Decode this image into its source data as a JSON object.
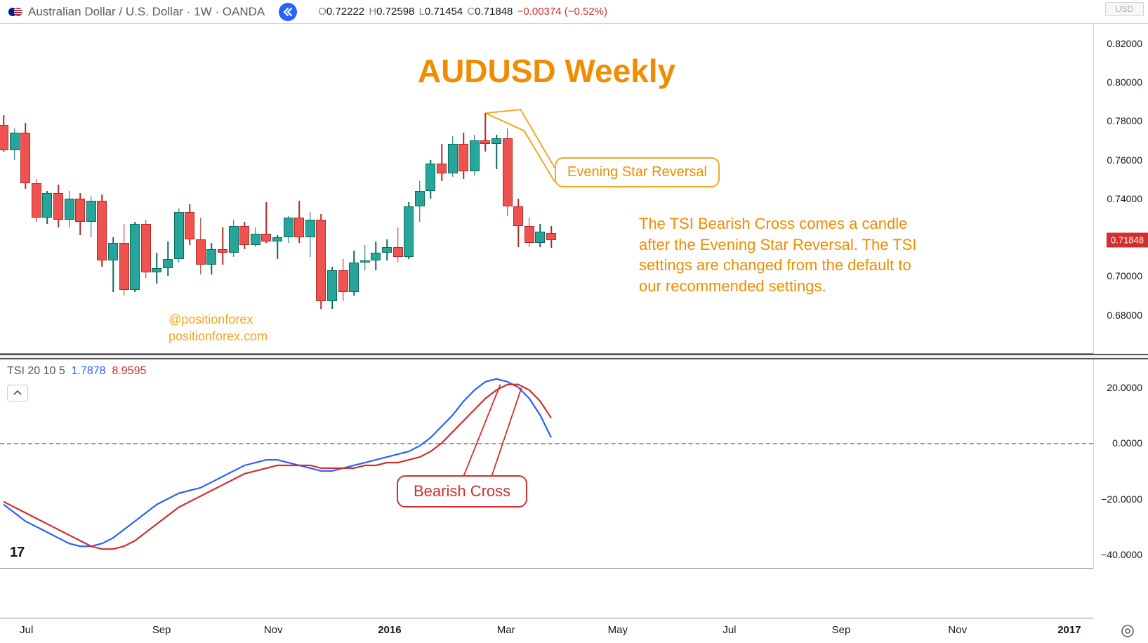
{
  "header": {
    "symbol": "Australian Dollar / U.S. Dollar · 1W · OANDA",
    "ohlc": {
      "O": "0.72222",
      "H": "0.72598",
      "L": "0.71454",
      "C": "0.71848",
      "chg": "−0.00374",
      "pct": "(−0.52%)"
    },
    "currency_selector": "USD"
  },
  "title": "AUDUSD Weekly",
  "watermark": {
    "line1": "@positionforex",
    "line2": "positionforex.com"
  },
  "callouts": {
    "evening_star": "Evening Star Reversal",
    "bearish_cross": "Bearish Cross"
  },
  "note": "The TSI Bearish Cross comes a candle after the Evening Star Reversal.  The TSI settings are changed from the default to our recommended settings.",
  "price_axis": {
    "min": 0.66,
    "max": 0.83,
    "ticks": [
      0.82,
      0.8,
      0.78,
      0.76,
      0.74,
      0.71848,
      0.7,
      0.68
    ],
    "price_tag": 0.71848
  },
  "indicator": {
    "label": "TSI 20 10 5",
    "v1": "1.7878",
    "v2": "8.9595",
    "min": -45,
    "max": 30,
    "ticks": [
      20.0,
      0.0,
      -20.0,
      -40.0
    ],
    "zero": 0,
    "blue_color": "#2962ff",
    "red_color": "#d12f2f",
    "blue": [
      -22,
      -25,
      -28,
      -30,
      -32,
      -34,
      -36,
      -37,
      -37,
      -36,
      -34,
      -31,
      -28,
      -25,
      -22,
      -20,
      -18,
      -17,
      -16,
      -14,
      -12,
      -10,
      -8,
      -7,
      -6,
      -6,
      -7,
      -8,
      -9,
      -10,
      -10,
      -9,
      -8,
      -7,
      -6,
      -5,
      -4,
      -3,
      -1,
      2,
      6,
      10,
      15,
      19,
      22,
      23,
      22,
      20,
      16,
      10,
      2
    ],
    "red": [
      -21,
      -23,
      -25,
      -27,
      -29,
      -31,
      -33,
      -35,
      -37,
      -38,
      -38,
      -37,
      -35,
      -32,
      -29,
      -26,
      -23,
      -21,
      -19,
      -17,
      -15,
      -13,
      -11,
      -10,
      -9,
      -8,
      -8,
      -8,
      -8,
      -9,
      -9,
      -9,
      -9,
      -8,
      -8,
      -7,
      -7,
      -6,
      -5,
      -3,
      0,
      4,
      8,
      12,
      16,
      19,
      21,
      21,
      19,
      15,
      9
    ]
  },
  "time_axis": {
    "start": "2015-06-01",
    "end": "2017-02-01",
    "ticks": [
      {
        "label": "Jul",
        "pos": 0.03,
        "bold": false
      },
      {
        "label": "Sep",
        "pos": 0.175,
        "bold": false
      },
      {
        "label": "Nov",
        "pos": 0.295,
        "bold": false
      },
      {
        "label": "2016",
        "pos": 0.42,
        "bold": true
      },
      {
        "label": "Mar",
        "pos": 0.545,
        "bold": false
      },
      {
        "label": "May",
        "pos": 0.665,
        "bold": false
      },
      {
        "label": "Jul",
        "pos": 0.785,
        "bold": false
      },
      {
        "label": "Sep",
        "pos": 0.905,
        "bold": false
      },
      {
        "label": "Nov",
        "pos": 1.03,
        "bold": false
      },
      {
        "label": "2017",
        "pos": 1.15,
        "bold": true
      }
    ]
  },
  "colors": {
    "orange": "#f08c00",
    "orange_light": "#f5a623",
    "red": "#d12f2f",
    "blue": "#2962ff",
    "candle_up": "#26a69a",
    "candle_down": "#ef5350",
    "text": "#131722"
  },
  "candles": [
    {
      "o": 0.778,
      "h": 0.783,
      "l": 0.764,
      "c": 0.765,
      "d": "down"
    },
    {
      "o": 0.765,
      "h": 0.776,
      "l": 0.76,
      "c": 0.774,
      "d": "up"
    },
    {
      "o": 0.774,
      "h": 0.779,
      "l": 0.745,
      "c": 0.748,
      "d": "down"
    },
    {
      "o": 0.748,
      "h": 0.75,
      "l": 0.728,
      "c": 0.73,
      "d": "down"
    },
    {
      "o": 0.73,
      "h": 0.744,
      "l": 0.727,
      "c": 0.743,
      "d": "up"
    },
    {
      "o": 0.743,
      "h": 0.747,
      "l": 0.725,
      "c": 0.729,
      "d": "down"
    },
    {
      "o": 0.729,
      "h": 0.744,
      "l": 0.725,
      "c": 0.74,
      "d": "up"
    },
    {
      "o": 0.74,
      "h": 0.743,
      "l": 0.721,
      "c": 0.728,
      "d": "down"
    },
    {
      "o": 0.728,
      "h": 0.741,
      "l": 0.72,
      "c": 0.739,
      "d": "up"
    },
    {
      "o": 0.739,
      "h": 0.742,
      "l": 0.705,
      "c": 0.708,
      "d": "down"
    },
    {
      "o": 0.708,
      "h": 0.72,
      "l": 0.692,
      "c": 0.717,
      "d": "up"
    },
    {
      "o": 0.717,
      "h": 0.727,
      "l": 0.69,
      "c": 0.693,
      "d": "down"
    },
    {
      "o": 0.693,
      "h": 0.728,
      "l": 0.692,
      "c": 0.727,
      "d": "up"
    },
    {
      "o": 0.727,
      "h": 0.729,
      "l": 0.699,
      "c": 0.702,
      "d": "down"
    },
    {
      "o": 0.702,
      "h": 0.712,
      "l": 0.696,
      "c": 0.704,
      "d": "up"
    },
    {
      "o": 0.704,
      "h": 0.718,
      "l": 0.7,
      "c": 0.709,
      "d": "up"
    },
    {
      "o": 0.709,
      "h": 0.735,
      "l": 0.707,
      "c": 0.733,
      "d": "up"
    },
    {
      "o": 0.733,
      "h": 0.737,
      "l": 0.716,
      "c": 0.719,
      "d": "down"
    },
    {
      "o": 0.719,
      "h": 0.73,
      "l": 0.701,
      "c": 0.706,
      "d": "down"
    },
    {
      "o": 0.706,
      "h": 0.717,
      "l": 0.701,
      "c": 0.714,
      "d": "up"
    },
    {
      "o": 0.714,
      "h": 0.725,
      "l": 0.706,
      "c": 0.712,
      "d": "down"
    },
    {
      "o": 0.712,
      "h": 0.729,
      "l": 0.71,
      "c": 0.726,
      "d": "up"
    },
    {
      "o": 0.726,
      "h": 0.728,
      "l": 0.714,
      "c": 0.716,
      "d": "down"
    },
    {
      "o": 0.716,
      "h": 0.725,
      "l": 0.715,
      "c": 0.722,
      "d": "up"
    },
    {
      "o": 0.722,
      "h": 0.738,
      "l": 0.717,
      "c": 0.718,
      "d": "down"
    },
    {
      "o": 0.718,
      "h": 0.721,
      "l": 0.709,
      "c": 0.72,
      "d": "up"
    },
    {
      "o": 0.72,
      "h": 0.731,
      "l": 0.717,
      "c": 0.73,
      "d": "up"
    },
    {
      "o": 0.73,
      "h": 0.739,
      "l": 0.717,
      "c": 0.72,
      "d": "down"
    },
    {
      "o": 0.72,
      "h": 0.733,
      "l": 0.71,
      "c": 0.729,
      "d": "up"
    },
    {
      "o": 0.729,
      "h": 0.732,
      "l": 0.683,
      "c": 0.687,
      "d": "down"
    },
    {
      "o": 0.687,
      "h": 0.705,
      "l": 0.683,
      "c": 0.703,
      "d": "up"
    },
    {
      "o": 0.703,
      "h": 0.709,
      "l": 0.687,
      "c": 0.692,
      "d": "down"
    },
    {
      "o": 0.692,
      "h": 0.713,
      "l": 0.69,
      "c": 0.707,
      "d": "up"
    },
    {
      "o": 0.707,
      "h": 0.716,
      "l": 0.703,
      "c": 0.708,
      "d": "up"
    },
    {
      "o": 0.708,
      "h": 0.718,
      "l": 0.703,
      "c": 0.712,
      "d": "up"
    },
    {
      "o": 0.712,
      "h": 0.719,
      "l": 0.708,
      "c": 0.715,
      "d": "up"
    },
    {
      "o": 0.715,
      "h": 0.725,
      "l": 0.707,
      "c": 0.71,
      "d": "down"
    },
    {
      "o": 0.71,
      "h": 0.738,
      "l": 0.709,
      "c": 0.736,
      "d": "up"
    },
    {
      "o": 0.736,
      "h": 0.749,
      "l": 0.728,
      "c": 0.744,
      "d": "up"
    },
    {
      "o": 0.744,
      "h": 0.76,
      "l": 0.74,
      "c": 0.758,
      "d": "up"
    },
    {
      "o": 0.758,
      "h": 0.768,
      "l": 0.749,
      "c": 0.753,
      "d": "down"
    },
    {
      "o": 0.753,
      "h": 0.772,
      "l": 0.751,
      "c": 0.768,
      "d": "up"
    },
    {
      "o": 0.768,
      "h": 0.774,
      "l": 0.75,
      "c": 0.754,
      "d": "down"
    },
    {
      "o": 0.754,
      "h": 0.773,
      "l": 0.752,
      "c": 0.77,
      "d": "up"
    },
    {
      "o": 0.77,
      "h": 0.784,
      "l": 0.764,
      "c": 0.768,
      "d": "down"
    },
    {
      "o": 0.768,
      "h": 0.773,
      "l": 0.755,
      "c": 0.771,
      "d": "up"
    },
    {
      "o": 0.771,
      "h": 0.776,
      "l": 0.731,
      "c": 0.736,
      "d": "down"
    },
    {
      "o": 0.736,
      "h": 0.74,
      "l": 0.715,
      "c": 0.726,
      "d": "down"
    },
    {
      "o": 0.726,
      "h": 0.73,
      "l": 0.715,
      "c": 0.717,
      "d": "down"
    },
    {
      "o": 0.717,
      "h": 0.727,
      "l": 0.715,
      "c": 0.723,
      "d": "up"
    },
    {
      "o": 0.7222,
      "h": 0.726,
      "l": 0.7145,
      "c": 0.7185,
      "d": "down"
    }
  ]
}
